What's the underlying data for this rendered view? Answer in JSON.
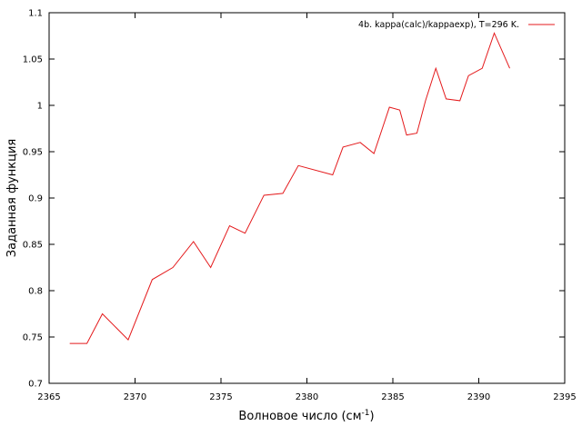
{
  "chart_data": {
    "type": "line",
    "xlabel": "Волновое число (см",
    "xlabel_sup": "-1",
    "xlabel_close": ")",
    "ylabel": "Заданная функция",
    "xlim": [
      2365,
      2395
    ],
    "ylim": [
      0.7,
      1.1
    ],
    "xticks": [
      2365,
      2370,
      2375,
      2380,
      2385,
      2390,
      2395
    ],
    "xtick_labels": [
      "2365",
      "2370",
      "2375",
      "2380",
      "2385",
      "2390",
      "2395"
    ],
    "yticks": [
      0.7,
      0.75,
      0.8,
      0.85,
      0.9,
      0.95,
      1.0,
      1.05,
      1.1
    ],
    "ytick_labels": [
      "0.7",
      "0.75",
      "0.8",
      "0.85",
      "0.9",
      "0.95",
      "1",
      "1.05",
      "1.1"
    ],
    "grid": false,
    "legend_position": "top-right",
    "series": [
      {
        "name": "4b. kappa(calc)/kappaexp), T=296 K.",
        "color": "#e41a1c",
        "x": [
          2366.2,
          2367.2,
          2368.1,
          2369.6,
          2371.0,
          2372.2,
          2373.4,
          2374.4,
          2375.5,
          2376.4,
          2377.5,
          2378.6,
          2379.5,
          2381.5,
          2382.1,
          2383.1,
          2383.9,
          2384.8,
          2385.4,
          2385.8,
          2386.4,
          2386.9,
          2387.5,
          2388.1,
          2388.9,
          2389.4,
          2390.2,
          2390.9,
          2391.8
        ],
        "y": [
          0.743,
          0.743,
          0.775,
          0.747,
          0.812,
          0.825,
          0.853,
          0.825,
          0.87,
          0.862,
          0.903,
          0.905,
          0.935,
          0.925,
          0.955,
          0.96,
          0.948,
          0.998,
          0.995,
          0.968,
          0.97,
          1.005,
          1.04,
          1.007,
          1.005,
          1.032,
          1.04,
          1.078,
          1.04
        ]
      }
    ]
  }
}
